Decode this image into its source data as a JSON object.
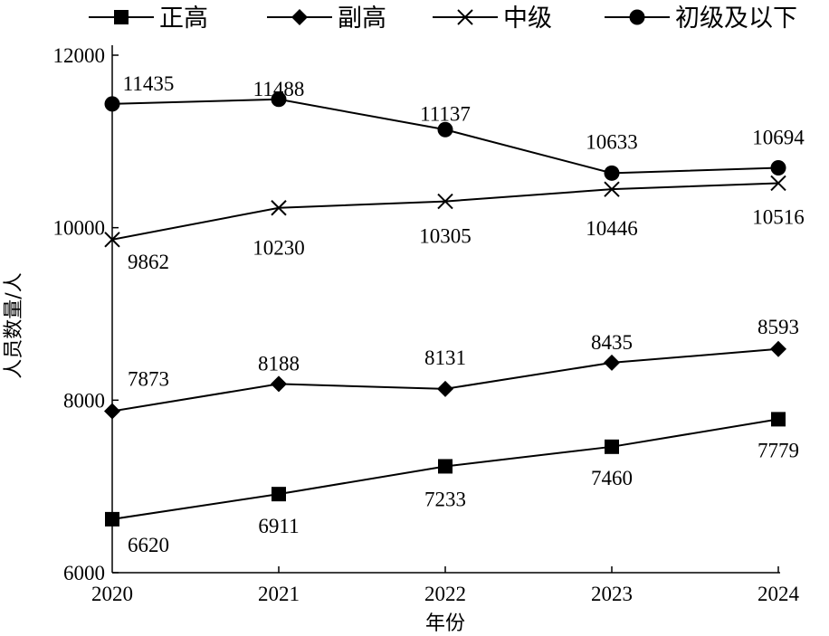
{
  "chart_data": {
    "type": "line",
    "title": "",
    "xlabel": "年份",
    "ylabel": "人员数量/人",
    "x": [
      "2020",
      "2021",
      "2022",
      "2023",
      "2024"
    ],
    "ylim": [
      6000,
      12000
    ],
    "yticks": [
      "6000",
      "8000",
      "10000",
      "12000"
    ],
    "grid": false,
    "legend": "top",
    "series": [
      {
        "name": "正高",
        "marker": "square",
        "values": [
          6620,
          6911,
          7233,
          7460,
          7779
        ]
      },
      {
        "name": "副高",
        "marker": "diamond",
        "values": [
          7873,
          8188,
          8131,
          8435,
          8593
        ]
      },
      {
        "name": "中级",
        "marker": "cross",
        "values": [
          9862,
          10230,
          10305,
          10446,
          10516
        ]
      },
      {
        "name": "初级及以下",
        "marker": "circle",
        "values": [
          11435,
          11488,
          11137,
          10633,
          10694
        ]
      }
    ]
  }
}
